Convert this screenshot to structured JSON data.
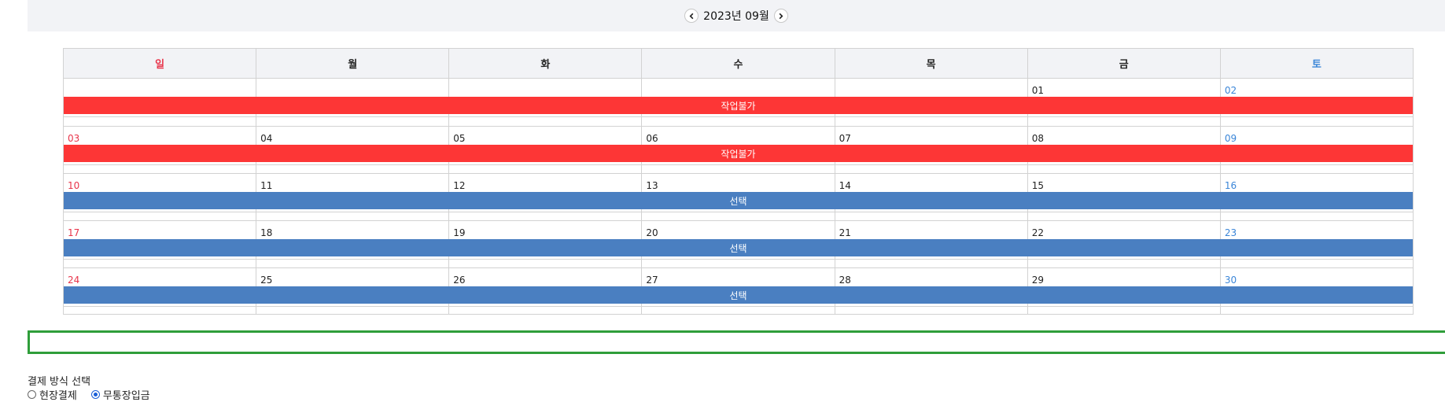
{
  "nav": {
    "title": "2023년 09월",
    "prev_icon": "chevron-left-icon",
    "next_icon": "chevron-right-icon"
  },
  "calendar": {
    "weekdays": [
      {
        "label": "일",
        "type": "sun"
      },
      {
        "label": "월",
        "type": "weekday"
      },
      {
        "label": "화",
        "type": "weekday"
      },
      {
        "label": "수",
        "type": "weekday"
      },
      {
        "label": "목",
        "type": "weekday"
      },
      {
        "label": "금",
        "type": "weekday"
      },
      {
        "label": "토",
        "type": "sat"
      }
    ],
    "weeks": [
      {
        "dates": [
          "",
          "",
          "",
          "",
          "",
          "01",
          "02"
        ],
        "bar_label": "작업불가",
        "bar_status": "unavailable"
      },
      {
        "dates": [
          "03",
          "04",
          "05",
          "06",
          "07",
          "08",
          "09"
        ],
        "bar_label": "작업불가",
        "bar_status": "unavailable"
      },
      {
        "dates": [
          "10",
          "11",
          "12",
          "13",
          "14",
          "15",
          "16"
        ],
        "bar_label": "선택",
        "bar_status": "selectable"
      },
      {
        "dates": [
          "17",
          "18",
          "19",
          "20",
          "21",
          "22",
          "23"
        ],
        "bar_label": "선택",
        "bar_status": "selectable"
      },
      {
        "dates": [
          "24",
          "25",
          "26",
          "27",
          "28",
          "29",
          "30"
        ],
        "bar_label": "선택",
        "bar_status": "selectable"
      }
    ],
    "colors": {
      "sunday": "#e8344a",
      "saturday": "#3b86d8",
      "unavailable": "#fd3636",
      "selectable": "#4a7fc1"
    }
  },
  "info_box": {
    "border_color": "#2f9e3a"
  },
  "payment": {
    "title": "결제 방식 선택",
    "options": [
      {
        "label": "현장결제",
        "checked": false
      },
      {
        "label": "무통장입금",
        "checked": true
      }
    ]
  }
}
